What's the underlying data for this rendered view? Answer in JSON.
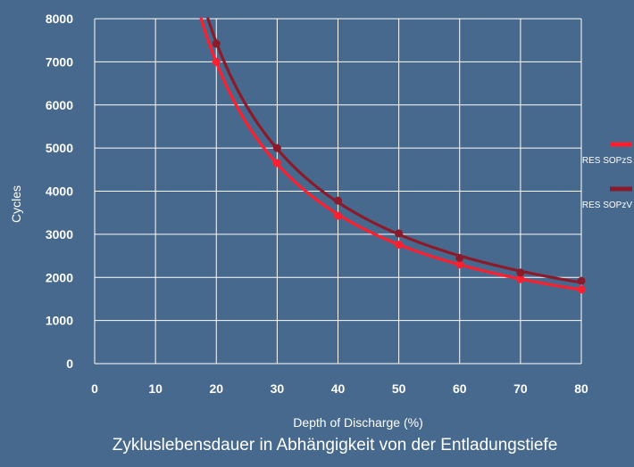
{
  "chart_data": {
    "type": "line",
    "title": "Zykluslebensdauer in Abhängigkeit von der Entladungstiefe",
    "xlabel": "Depth of Discharge (%)",
    "ylabel": "Cycles",
    "xlim": [
      0,
      80
    ],
    "ylim": [
      0,
      8000
    ],
    "xticks": [
      "0",
      "10",
      "20",
      "30",
      "40",
      "50",
      "60",
      "70",
      "80"
    ],
    "yticks": [
      "0",
      "1000",
      "2000",
      "3000",
      "4000",
      "5000",
      "6000",
      "7000",
      "8000"
    ],
    "grid": true,
    "legend_position": "right",
    "series": [
      {
        "name": "RES SOPzS",
        "color": "#ff1f2e",
        "points": [
          [
            20,
            7000
          ],
          [
            30,
            4650
          ],
          [
            40,
            3430
          ],
          [
            50,
            2760
          ],
          [
            60,
            2300
          ],
          [
            70,
            1960
          ],
          [
            80,
            1720
          ]
        ]
      },
      {
        "name": "RES SOPzV",
        "color": "#8b1b2b",
        "points": [
          [
            20,
            7420
          ],
          [
            30,
            5000
          ],
          [
            40,
            3780
          ],
          [
            50,
            3020
          ],
          [
            60,
            2450
          ],
          [
            70,
            2110
          ],
          [
            80,
            1920
          ]
        ]
      }
    ]
  }
}
